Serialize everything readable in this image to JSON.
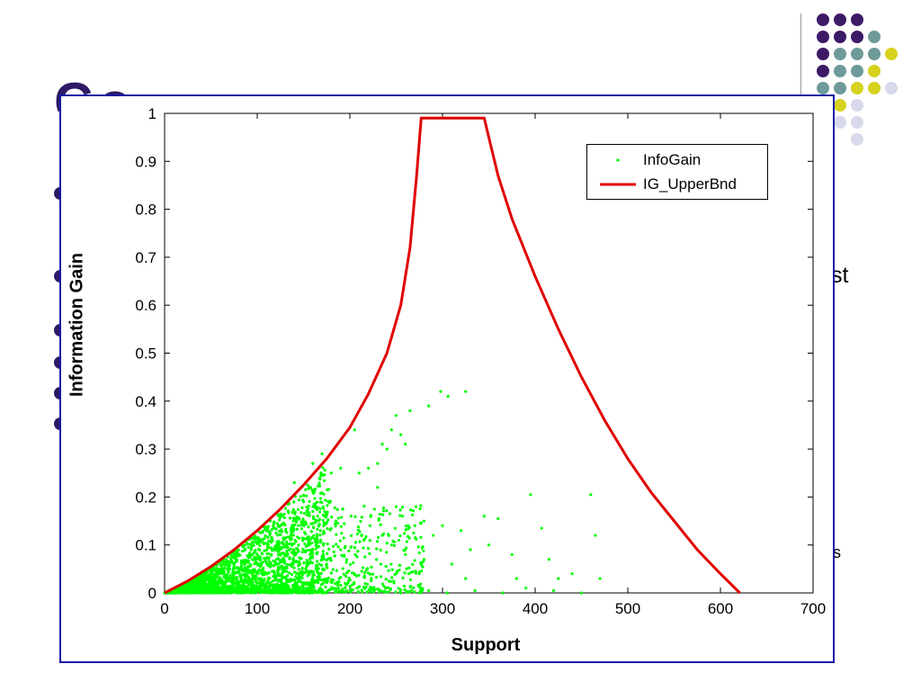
{
  "slide": {
    "title_fragment": "Co",
    "right_fragment_1": "st",
    "right_fragment_2": "s",
    "dot_colors": [
      "#3d1a66",
      "#6f9a9a",
      "#d6d21e",
      "#d9d9ec"
    ]
  },
  "chart_data": {
    "type": "scatter",
    "xlabel": "Support",
    "ylabel": "Information Gain",
    "xlim": [
      0,
      700
    ],
    "ylim": [
      0,
      1
    ],
    "xticks": [
      0,
      100,
      200,
      300,
      400,
      500,
      600,
      700
    ],
    "yticks": [
      0,
      0.1,
      0.2,
      0.3,
      0.4,
      0.5,
      0.6,
      0.7,
      0.8,
      0.9,
      1
    ],
    "legend": {
      "placement": "top-right",
      "entries": [
        "InfoGain",
        "IG_UpperBnd"
      ]
    },
    "series": [
      {
        "name": "InfoGain",
        "kind": "scatter",
        "color": "#00ff00",
        "points": [
          [
            160,
            0.27
          ],
          [
            170,
            0.29
          ],
          [
            180,
            0.25
          ],
          [
            190,
            0.26
          ],
          [
            205,
            0.34
          ],
          [
            210,
            0.25
          ],
          [
            220,
            0.26
          ],
          [
            230,
            0.27
          ],
          [
            235,
            0.31
          ],
          [
            245,
            0.34
          ],
          [
            250,
            0.37
          ],
          [
            255,
            0.33
          ],
          [
            265,
            0.38
          ],
          [
            285,
            0.39
          ],
          [
            298,
            0.42
          ],
          [
            306,
            0.41
          ],
          [
            325,
            0.42
          ],
          [
            240,
            0.3
          ],
          [
            260,
            0.31
          ],
          [
            230,
            0.22
          ],
          [
            250,
            0.18
          ],
          [
            270,
            0.14
          ],
          [
            280,
            0.15
          ],
          [
            290,
            0.12
          ],
          [
            300,
            0.14
          ],
          [
            310,
            0.06
          ],
          [
            320,
            0.13
          ],
          [
            330,
            0.09
          ],
          [
            345,
            0.16
          ],
          [
            350,
            0.1
          ],
          [
            360,
            0.155
          ],
          [
            375,
            0.08
          ],
          [
            395,
            0.205
          ],
          [
            407,
            0.135
          ],
          [
            415,
            0.07
          ],
          [
            425,
            0.03
          ],
          [
            460,
            0.205
          ],
          [
            465,
            0.12
          ],
          [
            470,
            0.03
          ],
          [
            380,
            0.03
          ],
          [
            390,
            0.01
          ],
          [
            420,
            0.005
          ],
          [
            440,
            0.04
          ],
          [
            450,
            0.0
          ],
          [
            365,
            0.0
          ],
          [
            335,
            0.005
          ],
          [
            325,
            0.03
          ],
          [
            305,
            0.0
          ],
          [
            285,
            0.005
          ],
          [
            255,
            0.0
          ],
          [
            275,
            0.0
          ],
          [
            280,
            0.07
          ],
          [
            260,
            0.08
          ],
          [
            245,
            0.1
          ],
          [
            235,
            0.12
          ],
          [
            215,
            0.11
          ],
          [
            205,
            0.04
          ],
          [
            195,
            0.02
          ],
          [
            190,
            0.09
          ],
          [
            185,
            0.15
          ],
          [
            175,
            0.06
          ],
          [
            165,
            0.11
          ],
          [
            160,
            0.17
          ],
          [
            150,
            0.19
          ],
          [
            140,
            0.23
          ]
        ]
      },
      {
        "name": "IG_UpperBnd",
        "kind": "line",
        "color": "#e00000",
        "points": [
          [
            0,
            0
          ],
          [
            25,
            0.025
          ],
          [
            50,
            0.055
          ],
          [
            75,
            0.09
          ],
          [
            100,
            0.13
          ],
          [
            125,
            0.175
          ],
          [
            150,
            0.225
          ],
          [
            175,
            0.28
          ],
          [
            200,
            0.345
          ],
          [
            220,
            0.415
          ],
          [
            240,
            0.5
          ],
          [
            255,
            0.6
          ],
          [
            265,
            0.72
          ],
          [
            272,
            0.87
          ],
          [
            277,
            0.99
          ],
          [
            345,
            0.99
          ],
          [
            350,
            0.95
          ],
          [
            360,
            0.87
          ],
          [
            375,
            0.78
          ],
          [
            400,
            0.66
          ],
          [
            425,
            0.55
          ],
          [
            450,
            0.45
          ],
          [
            475,
            0.36
          ],
          [
            500,
            0.28
          ],
          [
            525,
            0.21
          ],
          [
            550,
            0.15
          ],
          [
            575,
            0.09
          ],
          [
            600,
            0.04
          ],
          [
            621,
            0
          ]
        ]
      }
    ]
  }
}
